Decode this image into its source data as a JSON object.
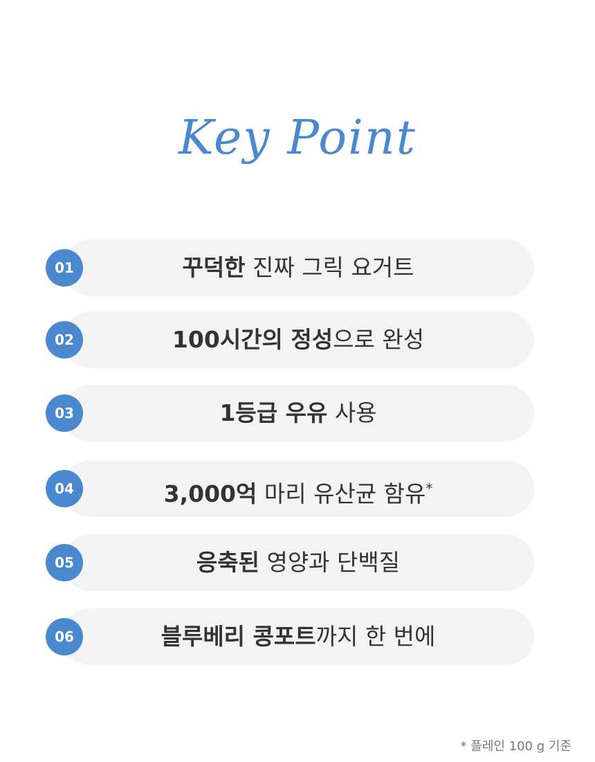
{
  "header": {
    "title": "Key Point"
  },
  "items": [
    {
      "number": "01",
      "segments": [
        {
          "text": "꾸덕한",
          "bold": true
        },
        {
          "text": " 진짜 그릭 요거트",
          "bold": false
        }
      ]
    },
    {
      "number": "02",
      "segments": [
        {
          "text": "100시간의 정성",
          "bold": true
        },
        {
          "text": "으로 완성",
          "bold": false
        }
      ]
    },
    {
      "number": "03",
      "segments": [
        {
          "text": "1등급 우유",
          "bold": true
        },
        {
          "text": " 사용",
          "bold": false
        }
      ]
    },
    {
      "number": "04",
      "segments": [
        {
          "text": "3,000억",
          "bold": true
        },
        {
          "text": " 마리 유산균 함유",
          "bold": false
        }
      ],
      "mark": "*"
    },
    {
      "number": "05",
      "segments": [
        {
          "text": "응축된",
          "bold": true
        },
        {
          "text": " 영양과 단백질",
          "bold": false
        }
      ]
    },
    {
      "number": "06",
      "segments": [
        {
          "text": "블루베리 콩포트",
          "bold": true
        },
        {
          "text": "까지 한 번에",
          "bold": false
        }
      ]
    }
  ],
  "footnote": "* 플레인 100 g 기준"
}
